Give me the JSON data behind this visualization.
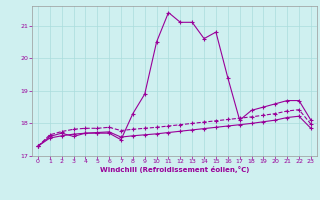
{
  "xlabel": "Windchill (Refroidissement éolien,°C)",
  "bg_color": "#cff0f0",
  "line_color": "#990099",
  "grid_color": "#aadddd",
  "xlim": [
    -0.5,
    23.5
  ],
  "ylim": [
    17.0,
    21.6
  ],
  "yticks": [
    17,
    18,
    19,
    20,
    21
  ],
  "xticks": [
    0,
    1,
    2,
    3,
    4,
    5,
    6,
    7,
    8,
    9,
    10,
    11,
    12,
    13,
    14,
    15,
    16,
    17,
    18,
    19,
    20,
    21,
    22,
    23
  ],
  "series1": [
    17.3,
    17.6,
    17.7,
    17.6,
    17.7,
    17.7,
    17.7,
    17.5,
    18.3,
    18.9,
    20.5,
    21.4,
    21.1,
    21.1,
    20.6,
    20.8,
    19.4,
    18.1,
    18.4,
    18.5,
    18.6,
    18.7,
    18.7,
    18.1
  ],
  "series2": [
    17.3,
    17.65,
    17.75,
    17.82,
    17.85,
    17.85,
    17.88,
    17.78,
    17.82,
    17.85,
    17.88,
    17.92,
    17.96,
    18.0,
    18.04,
    18.08,
    18.12,
    18.16,
    18.2,
    18.25,
    18.3,
    18.38,
    18.42,
    17.98
  ],
  "series3": [
    17.3,
    17.55,
    17.62,
    17.67,
    17.7,
    17.72,
    17.74,
    17.58,
    17.62,
    17.65,
    17.68,
    17.72,
    17.76,
    17.8,
    17.84,
    17.88,
    17.92,
    17.96,
    18.0,
    18.05,
    18.1,
    18.18,
    18.22,
    17.85
  ]
}
